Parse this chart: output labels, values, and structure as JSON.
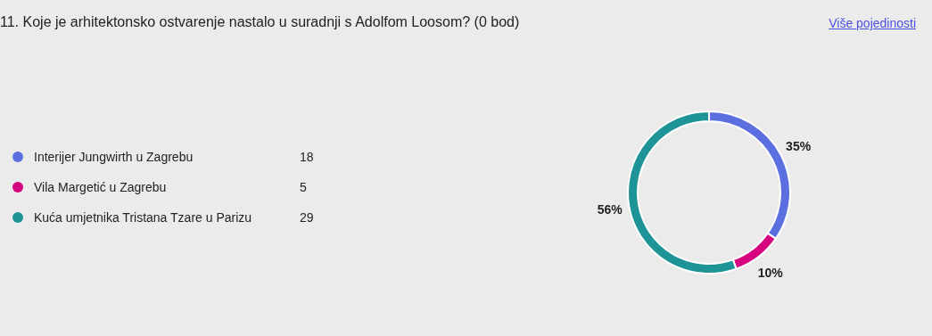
{
  "chart_data": {
    "type": "donut",
    "title": "11. Koje je arhitektonsko ostvarenje nastalo u suradnji s Adolfom Loosom? (0 bod)",
    "annotations": [
      "Više pojedinosti",
      {
        "text": "18",
        "x": "Interijer Jungwirth u Zagrebu"
      },
      {
        "text": "5",
        "x": "Vila Margetić u Zagrebu"
      },
      {
        "text": "29",
        "x": "Kuća umjetnika Tristana Tzare u Parizu"
      }
    ],
    "categories": [
      "Interijer Jungwirth u Zagrebu",
      "Vila Margetić u Zagrebu",
      "Kuća umjetnika Tristana Tzare u Parizu"
    ],
    "values": [
      35,
      10,
      56
    ],
    "value_labels": [
      "35%",
      "10%",
      "56%"
    ],
    "colors": [
      "#5b6fe0",
      "#d6047f",
      "#1e9497"
    ],
    "legend": "left"
  }
}
